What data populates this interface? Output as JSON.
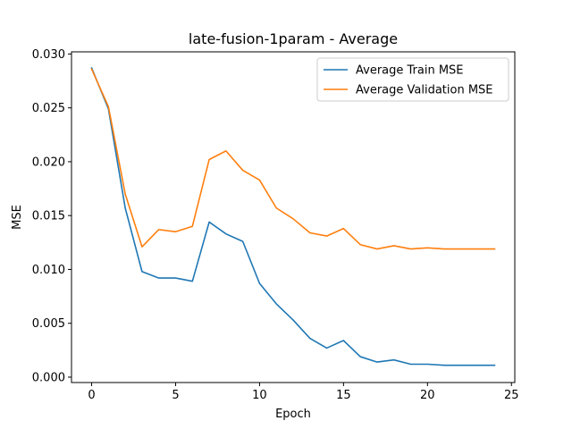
{
  "chart_data": {
    "type": "line",
    "title": "late-fusion-1param - Average",
    "xlabel": "Epoch",
    "ylabel": "MSE",
    "xlim": [
      -1.2,
      25.2
    ],
    "ylim": [
      -0.0005,
      0.0302
    ],
    "x_ticks": [
      0,
      5,
      10,
      15,
      20,
      25
    ],
    "x_tick_labels": [
      "0",
      "5",
      "10",
      "15",
      "20",
      "25"
    ],
    "y_ticks": [
      0.0,
      0.005,
      0.01,
      0.015,
      0.02,
      0.025,
      0.03
    ],
    "y_tick_labels": [
      "0.000",
      "0.005",
      "0.010",
      "0.015",
      "0.020",
      "0.025",
      "0.030"
    ],
    "grid": false,
    "legend_position": "top-right",
    "x": [
      0,
      1,
      2,
      3,
      4,
      5,
      6,
      7,
      8,
      9,
      10,
      11,
      12,
      13,
      14,
      15,
      16,
      17,
      18,
      19,
      20,
      21,
      22,
      23,
      24
    ],
    "series": [
      {
        "name": "Average Train MSE",
        "color": "#1f77b4",
        "values": [
          0.0287,
          0.0249,
          0.0157,
          0.0098,
          0.0092,
          0.0092,
          0.0089,
          0.0144,
          0.0133,
          0.0126,
          0.0087,
          0.0068,
          0.0053,
          0.0036,
          0.0027,
          0.0034,
          0.0019,
          0.0014,
          0.0016,
          0.0012,
          0.0012,
          0.0011,
          0.0011,
          0.0011,
          0.0011
        ]
      },
      {
        "name": "Average Validation MSE",
        "color": "#ff7f0e",
        "values": [
          0.0286,
          0.0251,
          0.017,
          0.0121,
          0.0137,
          0.0135,
          0.014,
          0.0202,
          0.021,
          0.0192,
          0.0183,
          0.0157,
          0.0147,
          0.0134,
          0.0131,
          0.0138,
          0.0123,
          0.0119,
          0.0122,
          0.0119,
          0.012,
          0.0119,
          0.0119,
          0.0119,
          0.0119
        ]
      }
    ]
  }
}
